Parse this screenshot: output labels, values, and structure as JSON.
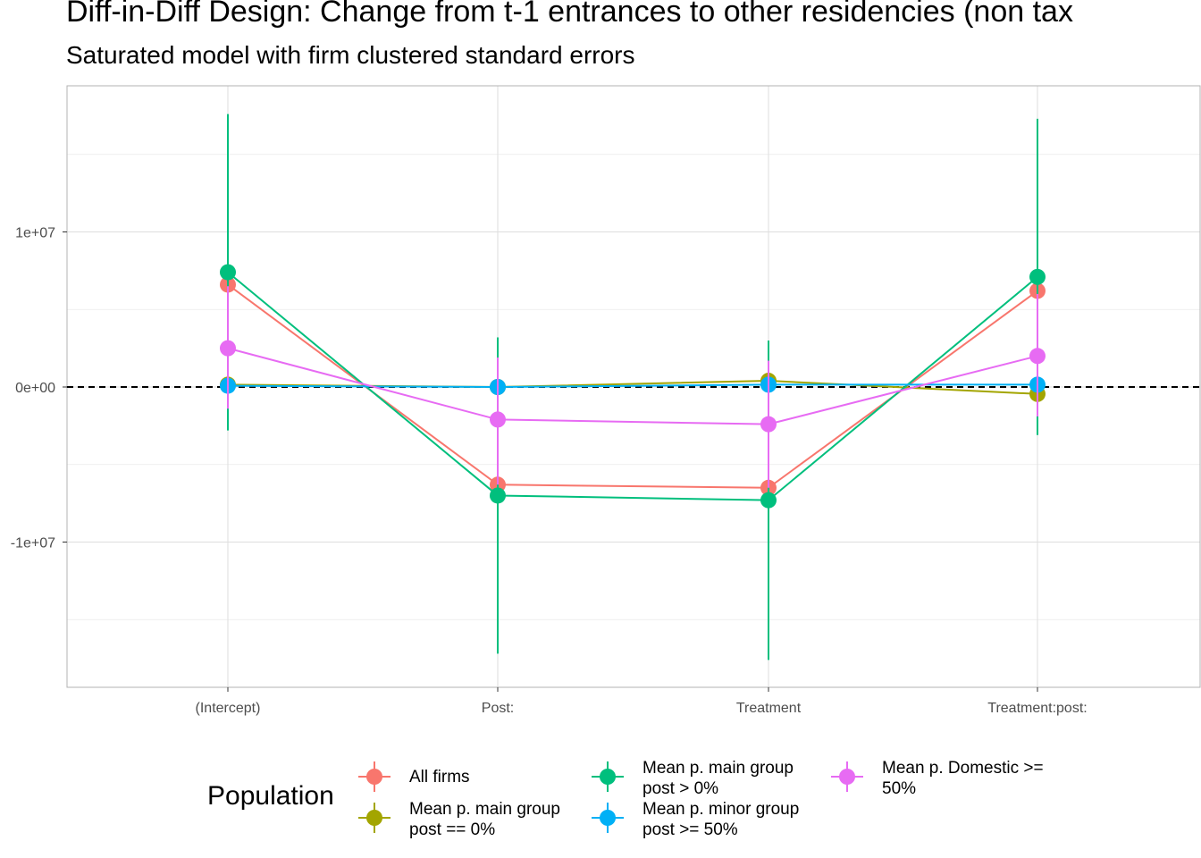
{
  "title": "Diff-in-Diff Design: Change from t-1 entrances to other residencies (non tax",
  "subtitle": "Saturated model with firm clustered standard errors",
  "chart_data": {
    "type": "line",
    "categories": [
      "(Intercept)",
      "Post:",
      "Treatment",
      "Treatment:post:"
    ],
    "y_ticks": [
      {
        "value": 10000000,
        "label": "1e+07"
      },
      {
        "value": 0,
        "label": "0e+00"
      },
      {
        "value": -10000000,
        "label": "-1e+07"
      }
    ],
    "ylim": [
      -19200000,
      19500000
    ],
    "reference_line": {
      "value": 0,
      "style": "dashed"
    },
    "legend_title": "Population",
    "legend_position": "bottom",
    "grid": true,
    "series": [
      {
        "name": "All firms",
        "color": "#F8766D",
        "values": [
          6600000,
          -6300000,
          -6500000,
          6200000
        ],
        "lower": [
          6600000,
          -6300000,
          -6500000,
          6200000
        ],
        "upper": [
          6600000,
          -6300000,
          -6500000,
          6200000
        ]
      },
      {
        "name": "Mean p. main group\npost == 0%",
        "color": "#A3A500",
        "values": [
          150000,
          0,
          400000,
          -450000
        ],
        "lower": [
          150000,
          0,
          400000,
          -450000
        ],
        "upper": [
          150000,
          0,
          400000,
          -450000
        ]
      },
      {
        "name": "Mean p. main group\npost > 0%",
        "color": "#00BF7D",
        "values": [
          7400000,
          -7000000,
          -7300000,
          7100000
        ],
        "lower": [
          -2800000,
          -17200000,
          -17600000,
          -3100000
        ],
        "upper": [
          17600000,
          3200000,
          3000000,
          17300000
        ]
      },
      {
        "name": "Mean p. minor group\npost >= 50%",
        "color": "#00B0F6",
        "values": [
          80000,
          0,
          150000,
          150000
        ],
        "lower": [
          80000,
          0,
          150000,
          150000
        ],
        "upper": [
          80000,
          0,
          150000,
          150000
        ]
      },
      {
        "name": "Mean p. Domestic >=\n50%",
        "color": "#E76BF3",
        "values": [
          2500000,
          -2100000,
          -2400000,
          2000000
        ],
        "lower": [
          -1400000,
          -6300000,
          -6500000,
          -1900000
        ],
        "upper": [
          6500000,
          1900000,
          1700000,
          6000000
        ]
      }
    ]
  }
}
